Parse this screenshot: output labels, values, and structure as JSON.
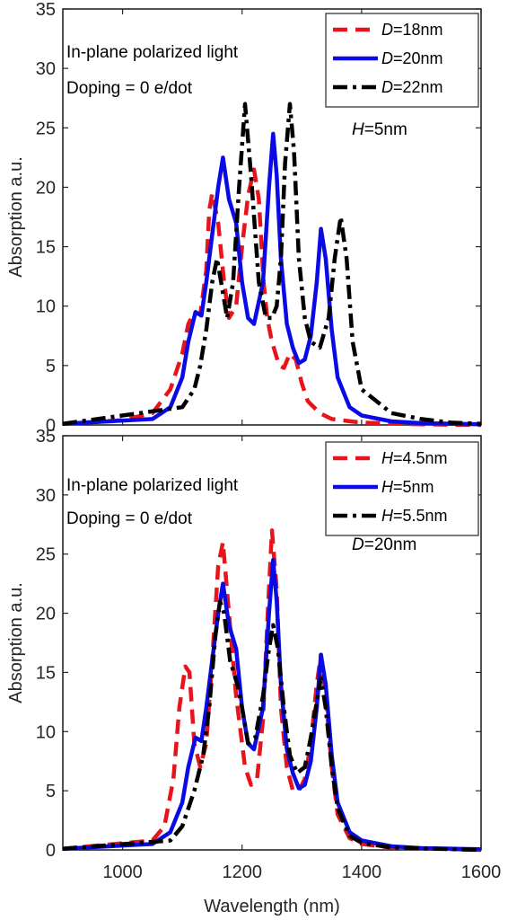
{
  "colors": {
    "red": "#e8141b",
    "blue": "#0a0ae6",
    "black": "#000000"
  },
  "chart_data": [
    {
      "type": "line",
      "xlabel": "",
      "ylabel": "Absorption a.u.",
      "xlim": [
        900,
        1600
      ],
      "ylim": [
        0,
        35
      ],
      "xticks": [],
      "yticks": [
        "0",
        "5",
        "10",
        "15",
        "20",
        "25",
        "30",
        "35"
      ],
      "annotations": [
        "In-plane polarized light",
        "Doping = 0 e/dot"
      ],
      "param_label": {
        "var": "H",
        "value": "=5nm"
      },
      "legend_position": "top-right",
      "series": [
        {
          "name": "=18nm",
          "var": "D",
          "color": "#e8141b",
          "style": "dashed",
          "x": [
            900,
            1000,
            1050,
            1080,
            1100,
            1110,
            1120,
            1130,
            1140,
            1145,
            1150,
            1160,
            1170,
            1178,
            1190,
            1200,
            1210,
            1220,
            1228,
            1236,
            1242,
            1250,
            1256,
            1262,
            1270,
            1280,
            1290,
            1300,
            1310,
            1330,
            1350,
            1400,
            1500,
            1600
          ],
          "y": [
            0.1,
            0.4,
            1,
            3,
            6,
            8.5,
            9.5,
            9.3,
            13,
            18,
            19.5,
            17,
            12,
            9,
            10,
            15,
            19.3,
            21.5,
            19,
            12,
            9,
            7,
            6,
            5,
            4.8,
            6,
            5.5,
            3.5,
            2,
            1,
            0.5,
            0.2,
            0.05,
            0
          ]
        },
        {
          "name": "=20nm",
          "var": "D",
          "color": "#0a0ae6",
          "style": "solid",
          "x": [
            900,
            1050,
            1080,
            1100,
            1110,
            1122,
            1132,
            1140,
            1150,
            1160,
            1168,
            1178,
            1190,
            1200,
            1210,
            1220,
            1235,
            1245,
            1252,
            1258,
            1265,
            1275,
            1285,
            1295,
            1305,
            1315,
            1325,
            1332,
            1340,
            1350,
            1360,
            1380,
            1400,
            1450,
            1500,
            1600
          ],
          "y": [
            0.1,
            0.5,
            1.5,
            4,
            7,
            9.5,
            9.2,
            12,
            16,
            20,
            22.5,
            19,
            17,
            12,
            9,
            8.5,
            12,
            20,
            24.5,
            21,
            14,
            8.5,
            6.5,
            5.2,
            5.5,
            7.5,
            12,
            16.5,
            14,
            8,
            4,
            1.5,
            0.8,
            0.3,
            0.15,
            0.05
          ]
        },
        {
          "name": "=22nm",
          "var": "D",
          "color": "#000000",
          "style": "dashdot",
          "x": [
            900,
            1100,
            1120,
            1130,
            1140,
            1150,
            1158,
            1165,
            1175,
            1185,
            1195,
            1205,
            1215,
            1228,
            1240,
            1250,
            1258,
            1265,
            1272,
            1280,
            1287,
            1295,
            1305,
            1315,
            1330,
            1345,
            1355,
            1365,
            1375,
            1385,
            1400,
            1450,
            1500,
            1550,
            1600
          ],
          "y": [
            0.1,
            1.5,
            3,
            5,
            8,
            12,
            14,
            12,
            9,
            12,
            20,
            27,
            21,
            12,
            9,
            9,
            10,
            14,
            22,
            27,
            23,
            14,
            9,
            7,
            6.5,
            9,
            14,
            17.5,
            14,
            7,
            3,
            1,
            0.5,
            0.2,
            0.1
          ]
        }
      ]
    },
    {
      "type": "line",
      "xlabel": "Wavelength (nm)",
      "ylabel": "Absorption a.u.",
      "xlim": [
        900,
        1600
      ],
      "ylim": [
        0,
        35
      ],
      "xticks": [
        "1000",
        "1200",
        "1400",
        "1600"
      ],
      "yticks": [
        "0",
        "5",
        "10",
        "15",
        "20",
        "25",
        "30",
        "35"
      ],
      "annotations": [
        "In-plane polarized light",
        "Doping = 0 e/dot"
      ],
      "param_label": {
        "var": "D",
        "value": "=20nm"
      },
      "legend_position": "top-right",
      "series": [
        {
          "name": "=4.5nm",
          "var": "H",
          "color": "#e8141b",
          "style": "dashed",
          "x": [
            900,
            1050,
            1070,
            1085,
            1095,
            1105,
            1112,
            1120,
            1130,
            1140,
            1150,
            1160,
            1168,
            1178,
            1190,
            1205,
            1215,
            1225,
            1235,
            1243,
            1250,
            1258,
            1265,
            1275,
            1285,
            1295,
            1305,
            1315,
            1325,
            1332,
            1340,
            1350,
            1360,
            1380,
            1400,
            1450,
            1600
          ],
          "y": [
            0.1,
            0.8,
            2,
            6,
            12,
            15.5,
            15,
            9,
            7,
            9,
            16,
            24,
            26,
            20,
            13,
            7,
            5.5,
            6,
            11,
            20,
            27,
            22,
            12,
            7,
            5,
            5,
            6,
            9,
            14,
            16.5,
            13,
            7,
            3,
            1,
            0.5,
            0.2,
            0
          ]
        },
        {
          "name": "=5nm",
          "var": "H",
          "color": "#0a0ae6",
          "style": "solid",
          "x": [
            900,
            1050,
            1080,
            1100,
            1110,
            1122,
            1132,
            1140,
            1150,
            1160,
            1168,
            1178,
            1190,
            1200,
            1210,
            1220,
            1235,
            1245,
            1252,
            1258,
            1265,
            1275,
            1285,
            1295,
            1305,
            1315,
            1325,
            1332,
            1340,
            1350,
            1360,
            1380,
            1400,
            1450,
            1500,
            1600
          ],
          "y": [
            0.1,
            0.5,
            1.5,
            4,
            7,
            9.5,
            9.2,
            12,
            16,
            20,
            22.5,
            19,
            17,
            12,
            9,
            8.5,
            12,
            20,
            24.5,
            21,
            14,
            8.5,
            6.5,
            5.2,
            5.5,
            7.5,
            12,
            16.5,
            14,
            8,
            4,
            1.5,
            0.8,
            0.3,
            0.15,
            0.05
          ]
        },
        {
          "name": "=5.5nm",
          "var": "H",
          "color": "#000000",
          "style": "dashdot",
          "x": [
            900,
            1080,
            1100,
            1120,
            1135,
            1145,
            1155,
            1163,
            1170,
            1180,
            1192,
            1200,
            1210,
            1222,
            1235,
            1245,
            1252,
            1260,
            1270,
            1280,
            1292,
            1305,
            1315,
            1325,
            1332,
            1340,
            1350,
            1360,
            1380,
            1400,
            1450,
            1600
          ],
          "y": [
            0.1,
            0.8,
            2,
            5,
            8,
            12,
            18,
            21,
            20,
            16,
            14,
            12,
            9,
            9.5,
            13,
            17,
            19,
            17,
            12,
            8,
            6.5,
            7,
            9.5,
            12.5,
            14.5,
            12,
            7,
            3.5,
            1.2,
            0.6,
            0.2,
            0
          ]
        }
      ]
    }
  ]
}
